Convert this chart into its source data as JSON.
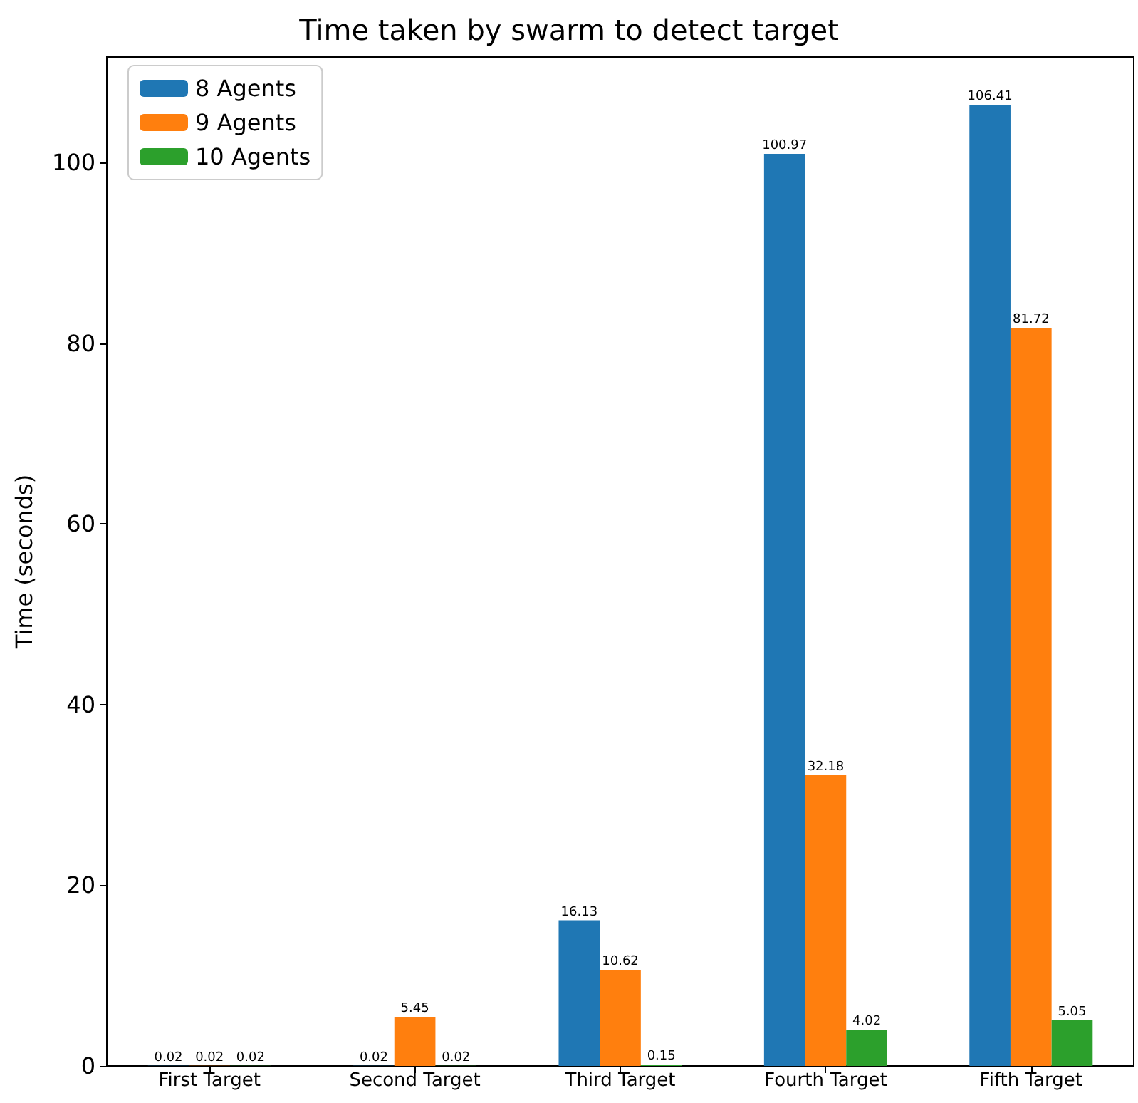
{
  "chart_data": {
    "type": "bar",
    "title": "Time taken by swarm to detect target",
    "ylabel": "Time (seconds)",
    "categories": [
      "First Target",
      "Second Target",
      "Third Target",
      "Fourth Target",
      "Fifth Target"
    ],
    "series": [
      {
        "name": "8 Agents",
        "color": "#1f77b4",
        "values": [
          0.02,
          0.02,
          16.13,
          100.97,
          106.41
        ]
      },
      {
        "name": "9 Agents",
        "color": "#ff7f0e",
        "values": [
          0.02,
          5.45,
          10.62,
          32.18,
          81.72
        ]
      },
      {
        "name": "10 Agents",
        "color": "#2ca02c",
        "values": [
          0.02,
          0.02,
          0.15,
          4.02,
          5.05
        ]
      }
    ],
    "ylim": [
      0,
      111.7
    ],
    "yticks": [
      0,
      20,
      40,
      60,
      80,
      100
    ],
    "grid": false,
    "legend": "top left",
    "data_labels": true
  }
}
